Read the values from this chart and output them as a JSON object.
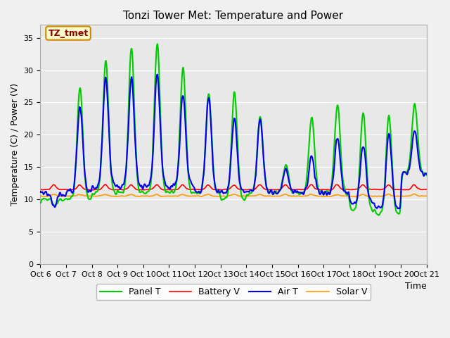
{
  "title": "Tonzi Tower Met: Temperature and Power",
  "xlabel": "Time",
  "ylabel": "Temperature (C) / Power (V)",
  "ylim": [
    0,
    37
  ],
  "yticks": [
    0,
    5,
    10,
    15,
    20,
    25,
    30,
    35
  ],
  "xtick_labels": [
    "Oct 6",
    "Oct 7",
    "Oct 8",
    "Oct 9",
    "Oct 10",
    "Oct 11",
    "Oct 12",
    "Oct 13",
    "Oct 14",
    "Oct 15",
    "Oct 16",
    "Oct 17",
    "Oct 18",
    "Oct 19",
    "Oct 20",
    "Oct 21"
  ],
  "label_box": "TZ_tmet",
  "bg_color": "#e8e8e8",
  "panel_T_color": "#00cc00",
  "battery_V_color": "#ff0000",
  "air_T_color": "#0000ee",
  "solar_V_color": "#ff9900",
  "title_fontsize": 11,
  "axis_fontsize": 9,
  "tick_fontsize": 8,
  "legend_fontsize": 9,
  "linewidth_main": 1.5,
  "linewidth_small": 1.2
}
